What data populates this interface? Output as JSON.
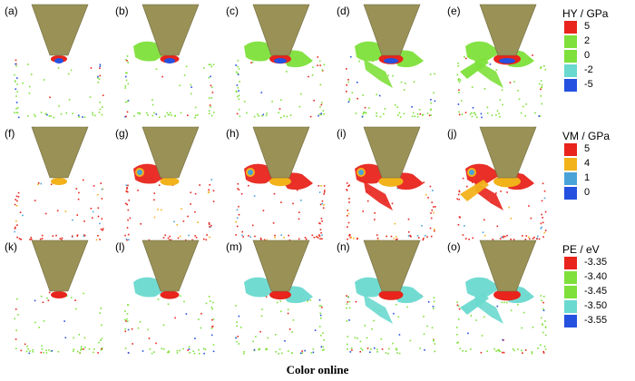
{
  "figure": {
    "caption": "Color online",
    "tip_color": "#9a9157",
    "panels": [
      {
        "label": "(a)",
        "row": 0,
        "col": 0,
        "field": "HY",
        "stage": 0
      },
      {
        "label": "(b)",
        "row": 0,
        "col": 1,
        "field": "HY",
        "stage": 1
      },
      {
        "label": "(c)",
        "row": 0,
        "col": 2,
        "field": "HY",
        "stage": 2
      },
      {
        "label": "(d)",
        "row": 0,
        "col": 3,
        "field": "HY",
        "stage": 3
      },
      {
        "label": "(e)",
        "row": 0,
        "col": 4,
        "field": "HY",
        "stage": 4
      },
      {
        "label": "(f)",
        "row": 1,
        "col": 0,
        "field": "VM",
        "stage": 0
      },
      {
        "label": "(g)",
        "row": 1,
        "col": 1,
        "field": "VM",
        "stage": 1
      },
      {
        "label": "(h)",
        "row": 1,
        "col": 2,
        "field": "VM",
        "stage": 2
      },
      {
        "label": "(i)",
        "row": 1,
        "col": 3,
        "field": "VM",
        "stage": 3
      },
      {
        "label": "(j)",
        "row": 1,
        "col": 4,
        "field": "VM",
        "stage": 4
      },
      {
        "label": "(k)",
        "row": 2,
        "col": 0,
        "field": "PE",
        "stage": 0
      },
      {
        "label": "(l)",
        "row": 2,
        "col": 1,
        "field": "PE",
        "stage": 1
      },
      {
        "label": "(m)",
        "row": 2,
        "col": 2,
        "field": "PE",
        "stage": 2
      },
      {
        "label": "(n)",
        "row": 2,
        "col": 3,
        "field": "PE",
        "stage": 3
      },
      {
        "label": "(o)",
        "row": 2,
        "col": 4,
        "field": "PE",
        "stage": 4
      }
    ]
  },
  "legends": [
    {
      "title": "HY / GPa",
      "entries": [
        {
          "value": "5",
          "color": "#e8241c"
        },
        {
          "value": "2",
          "color": "#7ee03a"
        },
        {
          "value": "0",
          "color": "#7ee03a"
        },
        {
          "value": "-2",
          "color": "#6ad9cf"
        },
        {
          "value": "-5",
          "color": "#2451e0"
        }
      ]
    },
    {
      "title": "VM / GPa",
      "entries": [
        {
          "value": "5",
          "color": "#e8241c"
        },
        {
          "value": "4",
          "color": "#f2b21a"
        },
        {
          "value": "1",
          "color": "#4aa3d8"
        },
        {
          "value": "0",
          "color": "#2451e0"
        }
      ]
    },
    {
      "title": "PE / eV",
      "entries": [
        {
          "value": "-3.35",
          "color": "#e8241c"
        },
        {
          "value": "-3.40",
          "color": "#7ee03a"
        },
        {
          "value": "-3.45",
          "color": "#7ee03a"
        },
        {
          "value": "-3.50",
          "color": "#6ad9cf"
        },
        {
          "value": "-3.55",
          "color": "#2451e0"
        }
      ]
    }
  ]
}
